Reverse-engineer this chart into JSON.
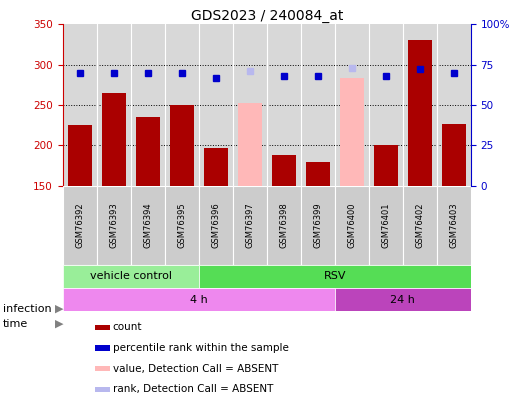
{
  "title": "GDS2023 / 240084_at",
  "samples": [
    "GSM76392",
    "GSM76393",
    "GSM76394",
    "GSM76395",
    "GSM76396",
    "GSM76397",
    "GSM76398",
    "GSM76399",
    "GSM76400",
    "GSM76401",
    "GSM76402",
    "GSM76403"
  ],
  "count_values": [
    225,
    265,
    235,
    250,
    197,
    null,
    188,
    179,
    null,
    200,
    330,
    227
  ],
  "absent_values": [
    null,
    null,
    null,
    null,
    null,
    252,
    null,
    null,
    284,
    null,
    null,
    null
  ],
  "rank_values": [
    70,
    70,
    70,
    70,
    67,
    null,
    68,
    68,
    null,
    68,
    72,
    70
  ],
  "absent_rank_values": [
    null,
    null,
    null,
    null,
    null,
    71,
    null,
    null,
    73,
    null,
    null,
    null
  ],
  "ylim_left": [
    150,
    350
  ],
  "ylim_right": [
    0,
    100
  ],
  "yticks_left": [
    150,
    200,
    250,
    300,
    350
  ],
  "yticks_right": [
    0,
    25,
    50,
    75,
    100
  ],
  "ytick_labels_right": [
    "0",
    "25",
    "50",
    "75",
    "100%"
  ],
  "bar_color": "#aa0000",
  "absent_bar_color": "#ffb8b8",
  "rank_color": "#0000cc",
  "absent_rank_color": "#b8b8ee",
  "bg_color": "#d8d8d8",
  "sample_box_color": "#cccccc",
  "infection_vc_color": "#99ee99",
  "infection_rsv_color": "#55dd55",
  "time_4h_color": "#ee88ee",
  "time_24h_color": "#bb44bb",
  "legend_items": [
    {
      "label": "count",
      "color": "#aa0000"
    },
    {
      "label": "percentile rank within the sample",
      "color": "#0000cc"
    },
    {
      "label": "value, Detection Call = ABSENT",
      "color": "#ffb8b8"
    },
    {
      "label": "rank, Detection Call = ABSENT",
      "color": "#b8b8ee"
    }
  ]
}
